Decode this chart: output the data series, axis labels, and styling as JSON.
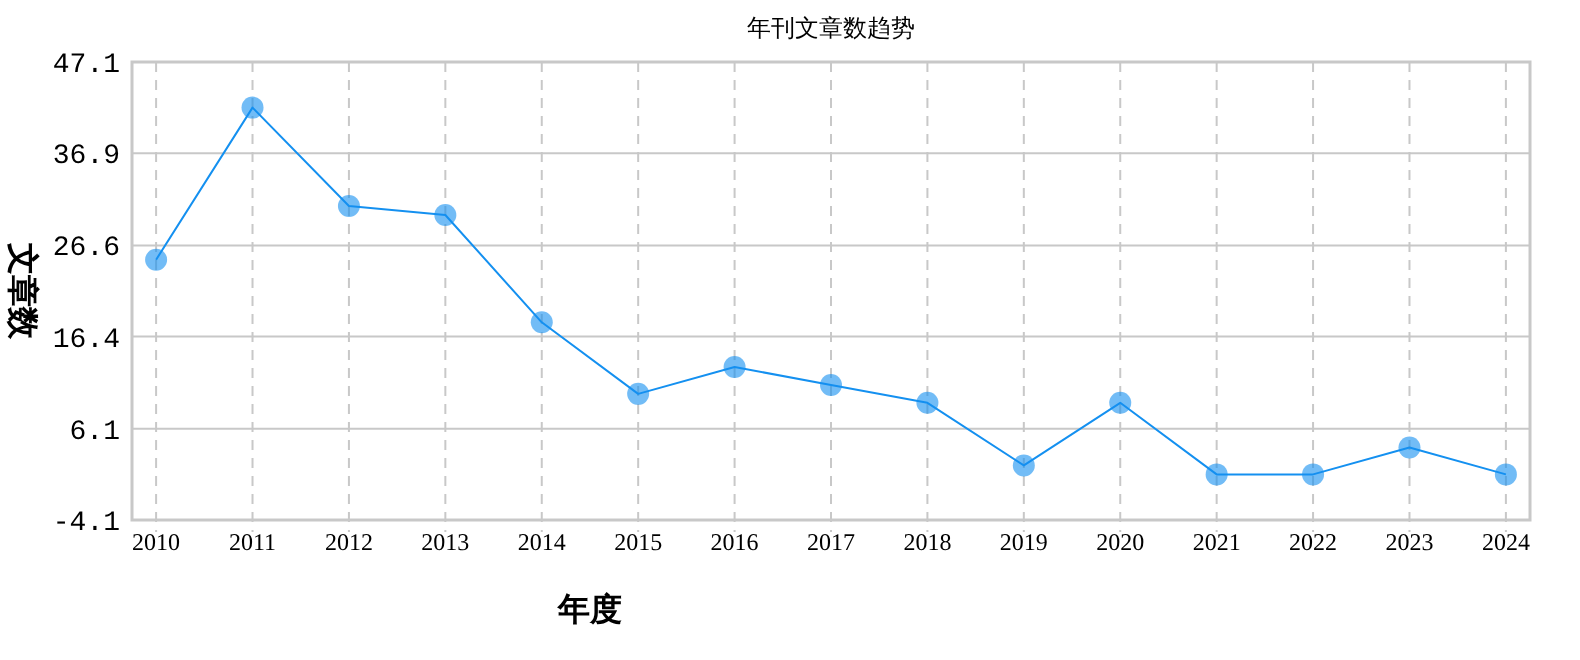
{
  "chart_data": {
    "type": "line",
    "title": "年刊文章数趋势",
    "xlabel": "年度",
    "ylabel": "文章数",
    "categories": [
      "2010",
      "2011",
      "2012",
      "2013",
      "2014",
      "2015",
      "2016",
      "2017",
      "2018",
      "2019",
      "2020",
      "2021",
      "2022",
      "2023",
      "2024"
    ],
    "series": [
      {
        "color": "#1490f0",
        "values": [
          25,
          42,
          31,
          30,
          18,
          10,
          13,
          11,
          9,
          2,
          9,
          1,
          1,
          4,
          1
        ]
      }
    ],
    "ylim": [
      -4.1,
      47.1
    ],
    "yticks": [
      -4.1,
      6.1,
      16.4,
      26.6,
      36.9,
      47.1
    ],
    "grid": true,
    "marker": "circle",
    "line_style": "solid"
  }
}
